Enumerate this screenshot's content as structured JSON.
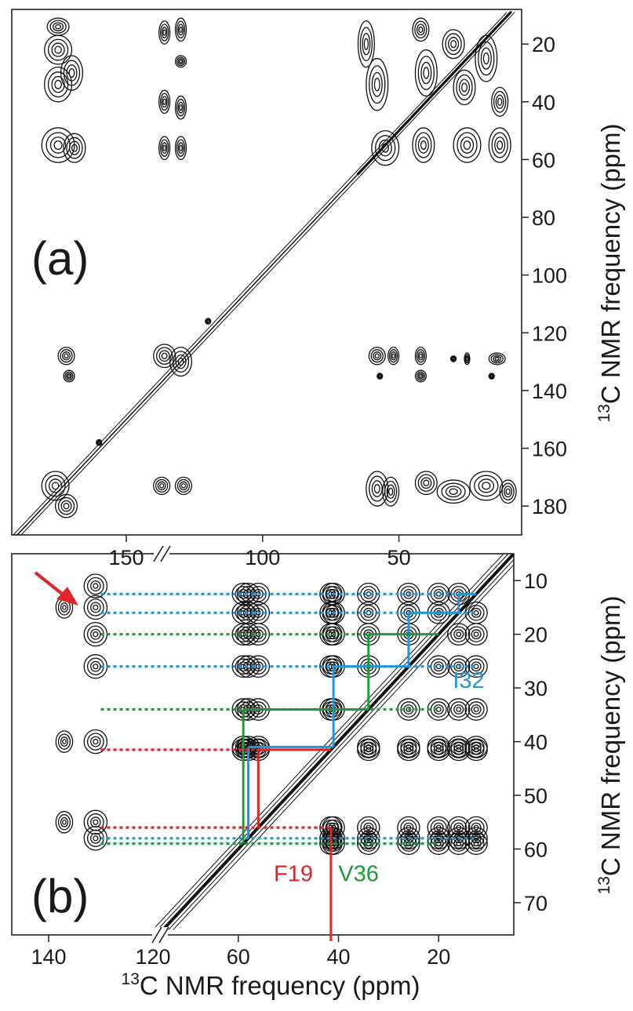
{
  "axis_title": "C NMR frequency (ppm)",
  "axis_title_superscript": "13",
  "colors": {
    "I32": "#1e96d8",
    "V36": "#1f9a3a",
    "F19": "#e0262b",
    "arrow": "#e0262b",
    "contour": "#111111"
  },
  "chart_data": [
    {
      "panel": "(a)",
      "type": "2D NMR contour spectrum",
      "x_axis": {
        "reversed": true,
        "range": [
          192,
          5
        ],
        "ticks": [
          150,
          100,
          50
        ]
      },
      "y_axis": {
        "reversed": true,
        "range": [
          8,
          190
        ],
        "ticks": [
          20,
          40,
          60,
          80,
          100,
          120,
          140,
          160,
          180
        ],
        "position": "right"
      },
      "peaks": [
        {
          "x": 175,
          "y": 14,
          "w": 4,
          "h": 3
        },
        {
          "x": 175,
          "y": 22,
          "w": 5,
          "h": 5
        },
        {
          "x": 175,
          "y": 34,
          "w": 5,
          "h": 6
        },
        {
          "x": 175,
          "y": 55,
          "w": 6,
          "h": 6
        },
        {
          "x": 170,
          "y": 30,
          "w": 4,
          "h": 6
        },
        {
          "x": 169,
          "y": 56,
          "w": 4,
          "h": 5
        },
        {
          "x": 136,
          "y": 16,
          "w": 2,
          "h": 4
        },
        {
          "x": 136,
          "y": 40,
          "w": 2,
          "h": 4
        },
        {
          "x": 136,
          "y": 56,
          "w": 2,
          "h": 4
        },
        {
          "x": 130,
          "y": 15,
          "w": 2,
          "h": 4
        },
        {
          "x": 130,
          "y": 26,
          "w": 2,
          "h": 2
        },
        {
          "x": 130,
          "y": 42,
          "w": 2,
          "h": 4
        },
        {
          "x": 130,
          "y": 56,
          "w": 2,
          "h": 4
        },
        {
          "x": 62,
          "y": 20,
          "w": 3,
          "h": 8
        },
        {
          "x": 58,
          "y": 34,
          "w": 4,
          "h": 9
        },
        {
          "x": 55,
          "y": 56,
          "w": 5,
          "h": 6
        },
        {
          "x": 42,
          "y": 15,
          "w": 3,
          "h": 4
        },
        {
          "x": 40,
          "y": 30,
          "w": 4,
          "h": 8
        },
        {
          "x": 41,
          "y": 55,
          "w": 4,
          "h": 6
        },
        {
          "x": 30,
          "y": 20,
          "w": 4,
          "h": 5
        },
        {
          "x": 26,
          "y": 35,
          "w": 4,
          "h": 6
        },
        {
          "x": 25,
          "y": 55,
          "w": 5,
          "h": 6
        },
        {
          "x": 18,
          "y": 25,
          "w": 4,
          "h": 8
        },
        {
          "x": 13,
          "y": 40,
          "w": 3,
          "h": 5
        },
        {
          "x": 13,
          "y": 55,
          "w": 4,
          "h": 6
        },
        {
          "x": 172,
          "y": 128,
          "w": 3,
          "h": 3
        },
        {
          "x": 171,
          "y": 135,
          "w": 2,
          "h": 2
        },
        {
          "x": 136,
          "y": 128,
          "w": 4,
          "h": 4
        },
        {
          "x": 130,
          "y": 130,
          "w": 4,
          "h": 5
        },
        {
          "x": 120,
          "y": 116,
          "w": 1,
          "h": 1
        },
        {
          "x": 160,
          "y": 158,
          "w": 1,
          "h": 1
        },
        {
          "x": 58,
          "y": 128,
          "w": 3,
          "h": 3
        },
        {
          "x": 52,
          "y": 128,
          "w": 2,
          "h": 3
        },
        {
          "x": 42,
          "y": 128,
          "w": 2,
          "h": 3
        },
        {
          "x": 42,
          "y": 135,
          "w": 2,
          "h": 2
        },
        {
          "x": 30,
          "y": 129,
          "w": 1,
          "h": 1
        },
        {
          "x": 25,
          "y": 129,
          "w": 1,
          "h": 2
        },
        {
          "x": 14,
          "y": 129,
          "w": 3,
          "h": 2
        },
        {
          "x": 16,
          "y": 135,
          "w": 1,
          "h": 1
        },
        {
          "x": 57,
          "y": 135,
          "w": 1,
          "h": 1
        },
        {
          "x": 176,
          "y": 173,
          "w": 5,
          "h": 5
        },
        {
          "x": 172,
          "y": 180,
          "w": 4,
          "h": 4
        },
        {
          "x": 137,
          "y": 173,
          "w": 3,
          "h": 3
        },
        {
          "x": 129,
          "y": 173,
          "w": 3,
          "h": 3
        },
        {
          "x": 58,
          "y": 174,
          "w": 4,
          "h": 6
        },
        {
          "x": 53,
          "y": 175,
          "w": 3,
          "h": 5
        },
        {
          "x": 40,
          "y": 172,
          "w": 4,
          "h": 4
        },
        {
          "x": 30,
          "y": 175,
          "w": 6,
          "h": 4
        },
        {
          "x": 18,
          "y": 173,
          "w": 6,
          "h": 5
        },
        {
          "x": 10,
          "y": 175,
          "w": 3,
          "h": 4
        }
      ]
    },
    {
      "panel": "(b)",
      "type": "2D NMR contour spectrum (expanded aliphatic region)",
      "x_axis": {
        "ticks": [
          140,
          120,
          60,
          40,
          20
        ],
        "segments": [
          [
            140,
            120
          ],
          [
            75,
            5
          ]
        ]
      },
      "y_axis": {
        "reversed": true,
        "range": [
          5,
          76
        ],
        "ticks": [
          10,
          20,
          30,
          40,
          50,
          60,
          70
        ],
        "position": "right"
      },
      "assignments": [
        {
          "residue": "I32",
          "label": "I32",
          "color": "#1e96d8",
          "chemical_shifts": [
            58.0,
            41.0,
            26.0,
            16.0,
            12.5
          ],
          "dotted_levels": [
            12.5,
            16.0,
            26.0,
            58.0
          ],
          "x_label_pos": 14,
          "y_label_pos": 30
        },
        {
          "residue": "V36",
          "label": "V36",
          "color": "#1f9a3a",
          "chemical_shifts": [
            59.0,
            34.0,
            20.0
          ],
          "dotted_levels": [
            20.0,
            34.0,
            59.0
          ],
          "x_label_pos": 36,
          "y_label_pos": 66
        },
        {
          "residue": "F19",
          "label": "F19",
          "color": "#e0262b",
          "chemical_shifts": [
            56.0,
            41.5
          ],
          "dotted_levels": [
            41.5,
            56.0
          ],
          "x_label_pos": 49,
          "y_label_pos": 66
        }
      ],
      "annotations": [
        {
          "type": "arrow",
          "target_x": 131.5,
          "target_y": 11
        }
      ]
    }
  ]
}
